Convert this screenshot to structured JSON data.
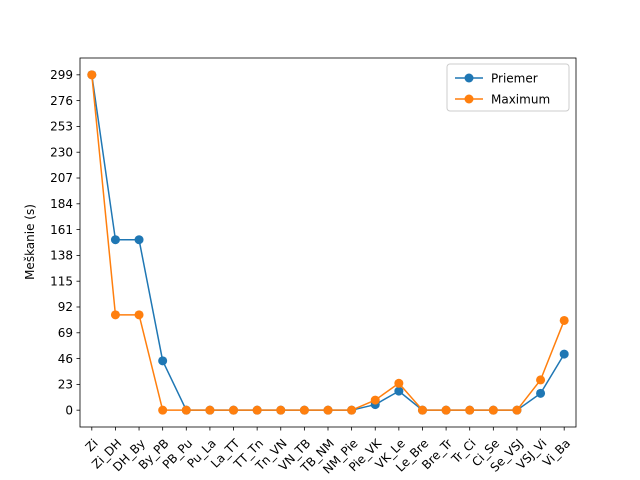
{
  "chart_data": {
    "type": "line",
    "title": "",
    "xlabel": "",
    "ylabel": "Meškanie (s)",
    "categories": [
      "Zi",
      "Zi_DH",
      "DH_By",
      "By_PB",
      "PB_Pu",
      "Pu_La",
      "La_TT",
      "TT_Tn",
      "Tn_VN",
      "VN_TB",
      "TB_NM",
      "NM_Pie",
      "Pie_VK",
      "VK_Le",
      "Le_Bre",
      "Bre_Tr",
      "Tr_Ci",
      "Ci_Se",
      "Se_VSJ",
      "VSJ_Vi",
      "Vi_Ba"
    ],
    "yticks": [
      0,
      23,
      46,
      69,
      92,
      115,
      138,
      161,
      184,
      207,
      230,
      253,
      276,
      299
    ],
    "ylim": [
      -15,
      314
    ],
    "grid": false,
    "legend_position": "top-right",
    "series": [
      {
        "name": "Priemer",
        "color": "#1f77b4",
        "values": [
          299,
          152,
          152,
          44,
          0,
          0,
          0,
          0,
          0,
          0,
          0,
          0,
          5,
          17,
          0,
          0,
          0,
          0,
          0,
          15,
          50
        ]
      },
      {
        "name": "Maximum",
        "color": "#ff7f0e",
        "values": [
          299,
          85,
          85,
          0,
          0,
          0,
          0,
          0,
          0,
          0,
          0,
          0,
          9,
          24,
          0,
          0,
          0,
          0,
          0,
          27,
          80
        ]
      }
    ]
  }
}
